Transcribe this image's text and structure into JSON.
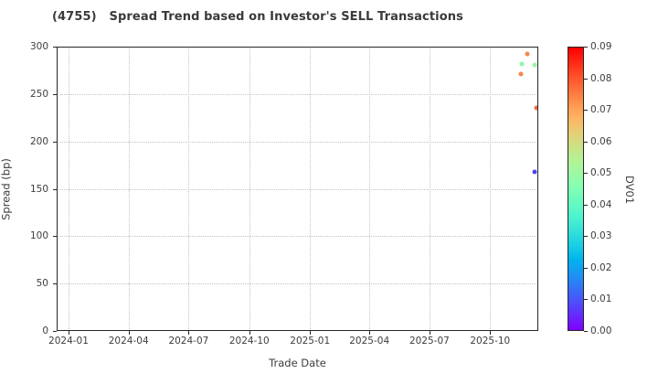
{
  "chart_data": {
    "type": "scatter",
    "title": "(4755)   Spread Trend based on Investor's SELL Transactions",
    "xlabel": "Trade Date",
    "ylabel": "Spread (bp)",
    "grid": "dotted",
    "x_domain": [
      "2023-12-14",
      "2025-12-13"
    ],
    "y_domain": [
      0,
      300
    ],
    "x_ticks": [
      {
        "date": "2024-01-01",
        "label": "2024-01"
      },
      {
        "date": "2024-04-01",
        "label": "2024-04"
      },
      {
        "date": "2024-07-01",
        "label": "2024-07"
      },
      {
        "date": "2024-10-01",
        "label": "2024-10"
      },
      {
        "date": "2025-01-01",
        "label": "2025-01"
      },
      {
        "date": "2025-04-01",
        "label": "2025-04"
      },
      {
        "date": "2025-07-01",
        "label": "2025-07"
      },
      {
        "date": "2025-10-01",
        "label": "2025-10"
      }
    ],
    "y_ticks": [
      0,
      50,
      100,
      150,
      200,
      250,
      300
    ],
    "points": [
      {
        "date": "2025-11-27",
        "spread_bp": 292,
        "dv01": 0.073,
        "color": "#F5854E"
      },
      {
        "date": "2025-11-18",
        "spread_bp": 282,
        "dv01": 0.05,
        "color": "#90F8A2"
      },
      {
        "date": "2025-12-08",
        "spread_bp": 281,
        "dv01": 0.05,
        "color": "#90F8A2"
      },
      {
        "date": "2025-11-16",
        "spread_bp": 271,
        "dv01": 0.073,
        "color": "#F5854E"
      },
      {
        "date": "2025-12-10",
        "spread_bp": 235,
        "dv01": 0.077,
        "color": "#F2693C"
      },
      {
        "date": "2025-12-08",
        "spread_bp": 168,
        "dv01": 0.012,
        "color": "#4745F5"
      }
    ],
    "colorbar": {
      "label": "DV01",
      "position": "right",
      "range": [
        0.0,
        0.09
      ],
      "ticks": [
        {
          "v": 0.0,
          "label": "0.00"
        },
        {
          "v": 0.01,
          "label": "0.01"
        },
        {
          "v": 0.02,
          "label": "0.02"
        },
        {
          "v": 0.03,
          "label": "0.03"
        },
        {
          "v": 0.04,
          "label": "0.04"
        },
        {
          "v": 0.05,
          "label": "0.05"
        },
        {
          "v": 0.06,
          "label": "0.06"
        },
        {
          "v": 0.07,
          "label": "0.07"
        },
        {
          "v": 0.08,
          "label": "0.08"
        },
        {
          "v": 0.09,
          "label": "0.09"
        }
      ],
      "gradient_stops": [
        {
          "pos": 0.0,
          "color": "#8000FF"
        },
        {
          "pos": 0.1,
          "color": "#4D4FFC"
        },
        {
          "pos": 0.2,
          "color": "#1A96F3"
        },
        {
          "pos": 0.25,
          "color": "#00B4EC"
        },
        {
          "pos": 0.3,
          "color": "#1ACEE3"
        },
        {
          "pos": 0.4,
          "color": "#4DF3CE"
        },
        {
          "pos": 0.5,
          "color": "#80FFB4"
        },
        {
          "pos": 0.6,
          "color": "#B3F396"
        },
        {
          "pos": 0.7,
          "color": "#E6CE74"
        },
        {
          "pos": 0.75,
          "color": "#FFB462"
        },
        {
          "pos": 0.8,
          "color": "#FF964F"
        },
        {
          "pos": 0.9,
          "color": "#FF4F28"
        },
        {
          "pos": 1.0,
          "color": "#FF0000"
        }
      ]
    },
    "frame_color": "#262626",
    "gridline_color": "#c3c3c3",
    "text_color": "#3d3d3d"
  }
}
